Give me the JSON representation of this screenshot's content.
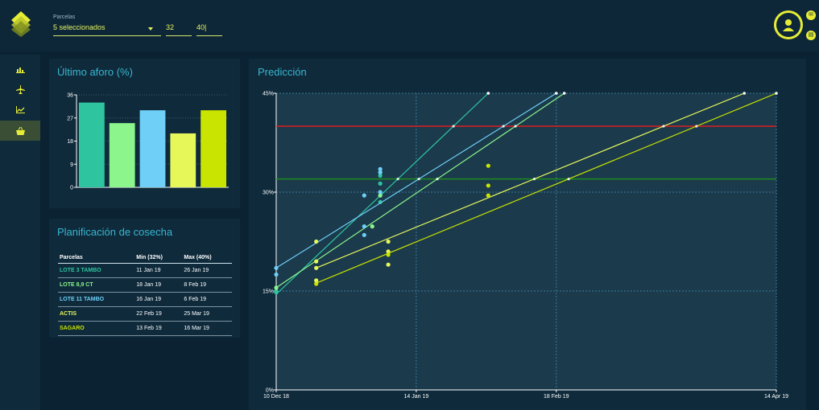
{
  "header": {
    "field_label": "Parcelas",
    "selected_text": "5 seleccionados",
    "min_value": "32",
    "max_value": "40|"
  },
  "sidebar": {
    "items": [
      {
        "icon": "bar-chart-icon"
      },
      {
        "icon": "plane-icon"
      },
      {
        "icon": "line-chart-icon"
      },
      {
        "icon": "basket-icon",
        "active": true
      }
    ]
  },
  "panels": {
    "aforo_title": "Último aforo (%)",
    "cosecha_title": "Planificación de cosecha",
    "prediccion_title": "Predicción"
  },
  "table": {
    "headers": [
      "Parcelas",
      "Min (32%)",
      "Max (40%)"
    ],
    "rows": [
      {
        "name": "LOTE 3 TAMBO",
        "min": "11 Jan 19",
        "max": "26 Jan 19",
        "color": "#2ec4a0"
      },
      {
        "name": "LOTE 8,9 CT",
        "min": "18 Jan 19",
        "max": "8 Feb 19",
        "color": "#8cf58c"
      },
      {
        "name": "LOTE 11 TAMBO",
        "min": "16 Jan 19",
        "max": "6 Feb 19",
        "color": "#6fcff7"
      },
      {
        "name": "ACTIS",
        "min": "22 Feb 19",
        "max": "25 Mar 19",
        "color": "#e6f75a"
      },
      {
        "name": "SAGARO",
        "min": "13 Feb 19",
        "max": "16 Mar 19",
        "color": "#c8e400"
      }
    ]
  },
  "chart_data": [
    {
      "type": "bar",
      "categories": [
        "LOTE 3 TAMBO",
        "LOTE 8,9 CT",
        "LOTE 11 TAMBO",
        "ACTIS",
        "SAGARO"
      ],
      "values": [
        33,
        25,
        30,
        21,
        30
      ],
      "colors": [
        "#2ec4a0",
        "#8cf58c",
        "#6fcff7",
        "#e6f75a",
        "#c8e400"
      ],
      "yticks": [
        "0",
        "9",
        "18",
        "27",
        "36"
      ],
      "ylim": [
        0,
        36
      ],
      "grid": true
    },
    {
      "type": "line",
      "xticks": [
        "10 Dec 18",
        "14 Jan 19",
        "18 Feb 19",
        "14 Apr 19"
      ],
      "yticks": [
        "0%",
        "15%",
        "30%",
        "45%"
      ],
      "ylim": [
        0,
        45
      ],
      "thresholds": [
        {
          "value": 40,
          "color": "#d92020"
        },
        {
          "value": 32,
          "color": "#1f8a1f"
        }
      ],
      "series": [
        {
          "color": "#2ec4a0",
          "line": [
            [
              "2018-12-10",
              14.5
            ],
            [
              "2019-02-01",
              45
            ]
          ],
          "points": [
            [
              "2018-12-10",
              15
            ],
            [
              "2018-12-10",
              14.8
            ],
            [
              "2019-01-05",
              28.5
            ],
            [
              "2019-01-05",
              31.3
            ],
            [
              "2019-01-05",
              33
            ],
            [
              "2019-01-05",
              32.5
            ]
          ]
        },
        {
          "color": "#8cf58c",
          "line": [
            [
              "2018-12-10",
              15.5
            ],
            [
              "2019-02-20",
              45
            ]
          ],
          "points": [
            [
              "2018-12-10",
              15.5
            ],
            [
              "2019-01-03",
              24.8
            ],
            [
              "2019-01-05",
              29.5
            ]
          ]
        },
        {
          "color": "#6fcff7",
          "line": [
            [
              "2018-12-10",
              18.5
            ],
            [
              "2019-02-18",
              45
            ]
          ],
          "points": [
            [
              "2018-12-10",
              18.5
            ],
            [
              "2018-12-10",
              17.5
            ],
            [
              "2019-01-01",
              24.8
            ],
            [
              "2019-01-01",
              23.5
            ],
            [
              "2019-01-01",
              29.5
            ],
            [
              "2019-01-05",
              30
            ],
            [
              "2019-01-05",
              33.5
            ],
            [
              "2019-01-05",
              33
            ]
          ]
        },
        {
          "color": "#e6f75a",
          "line": [
            [
              "2018-12-20",
              18.5
            ],
            [
              "2019-04-06",
              45
            ]
          ],
          "points": [
            [
              "2018-12-20",
              22.5
            ],
            [
              "2018-12-20",
              19.5
            ],
            [
              "2018-12-20",
              18.5
            ],
            [
              "2018-12-20",
              16.6
            ],
            [
              "2019-01-07",
              22.5
            ],
            [
              "2019-01-07",
              21
            ],
            [
              "2019-01-07",
              19
            ]
          ]
        },
        {
          "color": "#c8e400",
          "line": [
            [
              "2018-12-20",
              16.2
            ],
            [
              "2019-04-14",
              45
            ]
          ],
          "points": [
            [
              "2018-12-20",
              16.1
            ],
            [
              "2019-01-07",
              20.5
            ],
            [
              "2019-02-01",
              34
            ],
            [
              "2019-02-01",
              31
            ],
            [
              "2019-02-01",
              29.5
            ]
          ]
        }
      ]
    }
  ]
}
